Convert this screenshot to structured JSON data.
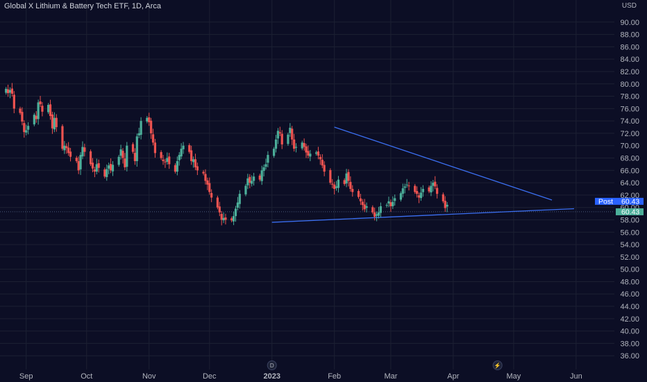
{
  "header": {
    "title": "Global X Lithium & Battery Tech ETF, 1D, Arca"
  },
  "colors": {
    "background": "#0c0e25",
    "grid": "#1c2033",
    "up": "#4caf9a",
    "down": "#ef5350",
    "trendline": "#3b6ff2",
    "post_tag": "#2962ff",
    "last_tag": "#4caf9a",
    "axis_text": "#b2b5be"
  },
  "chart_data": {
    "type": "candlestick",
    "title": "Global X Lithium & Battery Tech ETF, 1D, Arca",
    "currency": "USD",
    "ylim": [
      34,
      92
    ],
    "y_ticks": [
      36,
      38,
      40,
      42,
      44,
      46,
      48,
      50,
      52,
      54,
      56,
      58,
      60,
      62,
      64,
      66,
      68,
      70,
      72,
      74,
      76,
      78,
      80,
      82,
      84,
      86,
      88,
      90
    ],
    "x_labels": [
      {
        "label": "Sep",
        "date": "2022-09-01"
      },
      {
        "label": "Oct",
        "date": "2022-10-01"
      },
      {
        "label": "Nov",
        "date": "2022-11-01"
      },
      {
        "label": "Dec",
        "date": "2022-12-01"
      },
      {
        "label": "2023",
        "date": "2023-01-01"
      },
      {
        "label": "Feb",
        "date": "2023-02-01"
      },
      {
        "label": "Mar",
        "date": "2023-03-01"
      },
      {
        "label": "Apr",
        "date": "2023-04-01"
      },
      {
        "label": "May",
        "date": "2023-05-01"
      },
      {
        "label": "Jun",
        "date": "2023-06-01"
      }
    ],
    "xlim": [
      "2022-08-19",
      "2023-06-20"
    ],
    "price_labels": {
      "post": {
        "label": "Post",
        "value": "60.43",
        "y": 60.43
      },
      "last": {
        "value": "60.43",
        "y": 59.3
      }
    },
    "trendlines": [
      {
        "from": {
          "date": "2023-02-01",
          "y": 73.0
        },
        "to": {
          "date": "2023-05-20",
          "y": 61.2
        }
      },
      {
        "from": {
          "date": "2023-01-01",
          "y": 57.6
        },
        "to": {
          "date": "2023-05-31",
          "y": 59.8
        }
      }
    ],
    "event_markers": [
      {
        "label": "D",
        "date": "2023-01-01"
      },
      {
        "label": "⚡",
        "date": "2023-04-23"
      }
    ],
    "closes": [
      79.2,
      78.5,
      79.0,
      78.4,
      76.0,
      75.3,
      73.9,
      72.2,
      72.5,
      73.2,
      75.0,
      74.3,
      77.0,
      76.7,
      75.5,
      76.6,
      74.8,
      72.8,
      74.5,
      73.0,
      69.5,
      70.0,
      69.6,
      68.8,
      68.2,
      67.5,
      66.0,
      68.5,
      69.8,
      69.0,
      67.0,
      66.3,
      65.8,
      67.0,
      66.4,
      65.0,
      66.2,
      66.8,
      66.0,
      66.9,
      68.2,
      69.4,
      68.0,
      66.5,
      70.0,
      69.0,
      67.5,
      71.5,
      72.0,
      74.0,
      74.5,
      73.8,
      72.0,
      70.5,
      68.8,
      68.0,
      67.5,
      67.3,
      68.0,
      67.0,
      65.8,
      67.5,
      68.5,
      69.5,
      70.0,
      69.0,
      67.5,
      67.8,
      66.5,
      66.0,
      65.5,
      64.3,
      63.7,
      62.5,
      61.6,
      60.0,
      59.2,
      58.0,
      58.3,
      58.0,
      57.9,
      58.6,
      59.8,
      60.8,
      62.2,
      63.5,
      64.7,
      64.0,
      64.3,
      65.0,
      64.5,
      66.0,
      66.5,
      67.0,
      68.5,
      69.5,
      71.0,
      72.4,
      72.0,
      70.2,
      71.8,
      72.9,
      71.0,
      69.5,
      69.8,
      70.5,
      69.8,
      68.9,
      68.4,
      68.7,
      68.9,
      68.4,
      67.8,
      66.8,
      65.8,
      64.0,
      63.7,
      63.0,
      63.4,
      64.5,
      63.8,
      65.5,
      64.3,
      63.0,
      62.5,
      61.7,
      61.0,
      60.4,
      59.7,
      60.2,
      59.2,
      58.5,
      58.9,
      59.2,
      60.2,
      60.4,
      61.0,
      60.2,
      60.9,
      61.5,
      62.3,
      63.1,
      63.4,
      63.7,
      63.5,
      62.5,
      62.2,
      61.6,
      62.4,
      63.0,
      62.6,
      63.5,
      64.0,
      63.4,
      62.2,
      61.0,
      59.9,
      60.43
    ]
  }
}
